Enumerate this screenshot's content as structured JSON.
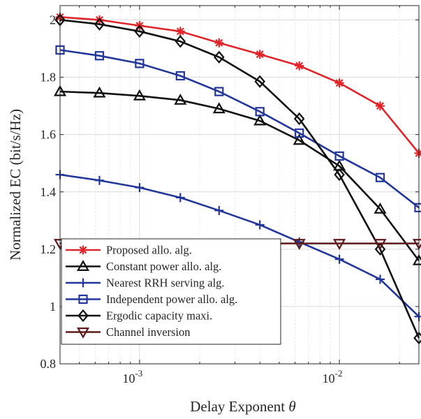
{
  "chart_data": {
    "type": "line",
    "xscale": "log",
    "xlabel": "Delay Exponent θ",
    "ylabel": "Normalized EC (bit/s/Hz)",
    "xlim": [
      0.0004,
      0.025
    ],
    "ylim": [
      0.8,
      2.05
    ],
    "grid": true,
    "legend_position": "bottom-left",
    "yticks": [
      {
        "value": 0.8,
        "label": "0.8"
      },
      {
        "value": 1.0,
        "label": "1"
      },
      {
        "value": 1.2,
        "label": "1.2"
      },
      {
        "value": 1.4,
        "label": "1.4"
      },
      {
        "value": 1.6,
        "label": "1.6"
      },
      {
        "value": 1.8,
        "label": "1.8"
      },
      {
        "value": 2.0,
        "label": "2"
      }
    ],
    "xticks": [
      {
        "value": 0.001,
        "base": "10",
        "exp": "-3"
      },
      {
        "value": 0.01,
        "base": "10",
        "exp": "-2"
      }
    ],
    "x": [
      0.0004,
      0.00063,
      0.001,
      0.0016,
      0.0025,
      0.004,
      0.0063,
      0.01,
      0.016,
      0.025
    ],
    "series": [
      {
        "name": "Proposed allo. alg.",
        "color": "#e0262a",
        "marker": "asterisk",
        "values": [
          2.01,
          2.0,
          1.98,
          1.96,
          1.92,
          1.88,
          1.84,
          1.78,
          1.7,
          1.535
        ]
      },
      {
        "name": "Constant power allo. alg.",
        "color": "#111111",
        "marker": "triangle-up",
        "values": [
          1.75,
          1.745,
          1.735,
          1.72,
          1.69,
          1.648,
          1.58,
          1.49,
          1.34,
          1.16
        ]
      },
      {
        "name": "Nearest RRH serving alg.",
        "color": "#23369a",
        "marker": "plus",
        "values": [
          1.46,
          1.44,
          1.415,
          1.38,
          1.335,
          1.285,
          1.225,
          1.165,
          1.095,
          0.965
        ]
      },
      {
        "name": "Independent power allo. alg.",
        "color": "#23369a",
        "marker": "square",
        "values": [
          1.895,
          1.875,
          1.848,
          1.805,
          1.75,
          1.68,
          1.605,
          1.525,
          1.45,
          1.345
        ]
      },
      {
        "name": "Ergodic capacity maxi.",
        "color": "#111111",
        "marker": "diamond",
        "values": [
          2.0,
          1.985,
          1.96,
          1.925,
          1.87,
          1.785,
          1.655,
          1.46,
          1.2,
          0.89
        ]
      },
      {
        "name": "Channel inversion",
        "color": "#5e1a1a",
        "marker": "triangle-down",
        "values": [
          1.22,
          1.22,
          1.22,
          1.22,
          1.22,
          1.22,
          1.22,
          1.22,
          1.22,
          1.22
        ]
      }
    ]
  }
}
